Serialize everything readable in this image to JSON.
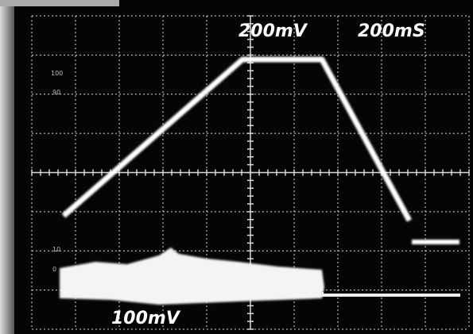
{
  "labels": {
    "volts_per_div": "200mV",
    "time_per_div": "200mS",
    "channel2_volts_per_div": "100mV"
  },
  "graticule_marks": [
    "100",
    "90",
    "10",
    "0"
  ]
}
